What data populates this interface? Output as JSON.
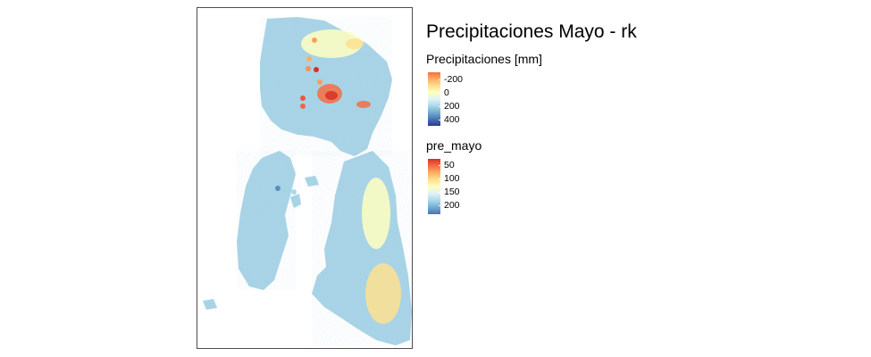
{
  "title": "Precipitaciones Mayo - rk",
  "legend_raster": {
    "title": "Precipitaciones [mm]",
    "ticks": [
      "-200",
      "0",
      "200",
      "400"
    ],
    "colors": [
      "#f46d43",
      "#fdae61",
      "#fee090",
      "#ffffbf",
      "#e0f3f8",
      "#abd9e9",
      "#74add1",
      "#4575b4",
      "#313695"
    ]
  },
  "legend_points": {
    "title": "pre_mayo",
    "ticks": [
      "50",
      "100",
      "150",
      "200"
    ],
    "colors": [
      "#d73027",
      "#f46d43",
      "#fdae61",
      "#fee090",
      "#ffffbf",
      "#e0f3f8",
      "#abd9e9",
      "#74add1",
      "#4575b4"
    ]
  },
  "map": {
    "land_color": "#a9d4e6",
    "stations": [
      {
        "pre_mayo": 80
      },
      {
        "pre_mayo": 85
      },
      {
        "pre_mayo": 75
      },
      {
        "pre_mayo": 40
      },
      {
        "pre_mayo": 80
      },
      {
        "pre_mayo": 55
      },
      {
        "pre_mayo": 60
      },
      {
        "pre_mayo": 210
      },
      {
        "pre_mayo": 175
      }
    ]
  }
}
